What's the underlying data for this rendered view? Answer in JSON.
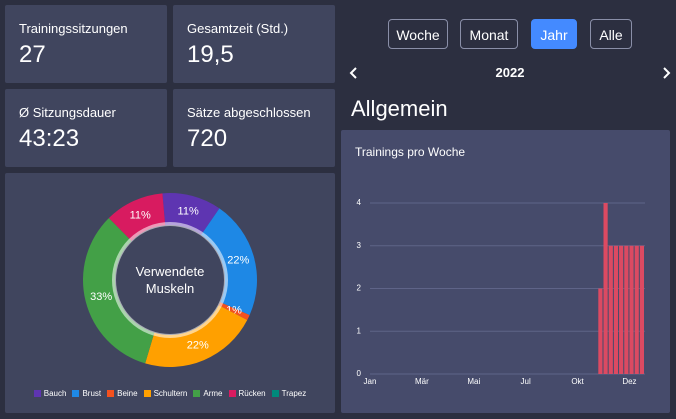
{
  "stats": [
    {
      "label": "Trainingssitzungen",
      "value": "27"
    },
    {
      "label": "Gesamtzeit (Std.)",
      "value": "19,5"
    },
    {
      "label": "Ø Sitzungsdauer",
      "value": "43:23"
    },
    {
      "label": "Sätze abgeschlossen",
      "value": "720"
    }
  ],
  "periods": {
    "options": [
      "Woche",
      "Monat",
      "Jahr",
      "Alle"
    ],
    "active": 2
  },
  "year": "2022",
  "section_title": "Allgemein",
  "chart_data": [
    {
      "type": "pie",
      "center_label": "Verwendete Muskeln",
      "categories": [
        "Bauch",
        "Brust",
        "Beine",
        "Schultern",
        "Arme",
        "Rücken",
        "Trapez"
      ],
      "values": [
        11,
        22,
        1,
        22,
        33,
        11,
        0
      ],
      "value_labels": [
        "11%",
        "22%",
        "1%",
        "22%",
        "33%",
        "11%",
        null
      ],
      "colors": [
        "#5e35b1",
        "#1e88e5",
        "#f4511e",
        "#ffa000",
        "#43a047",
        "#d81b60",
        "#00897b"
      ]
    },
    {
      "type": "bar",
      "title": "Trainings pro Woche",
      "x": [
        44,
        45,
        46,
        47,
        48,
        49,
        50,
        51,
        52
      ],
      "values": [
        2,
        4,
        3,
        3,
        3,
        3,
        3,
        3,
        3
      ],
      "color": "#dc4a62",
      "xlim": [
        0,
        53
      ],
      "xticks": [
        {
          "value": 0,
          "label": "Jan"
        },
        {
          "value": 10,
          "label": "Mär"
        },
        {
          "value": 20,
          "label": "Mai"
        },
        {
          "value": 30,
          "label": "Jul"
        },
        {
          "value": 40,
          "label": "Okt"
        },
        {
          "value": 50,
          "label": "Dez"
        }
      ],
      "ylim": [
        0,
        4
      ],
      "yticks": [
        0,
        1,
        2,
        3,
        4
      ],
      "grid": true
    }
  ]
}
